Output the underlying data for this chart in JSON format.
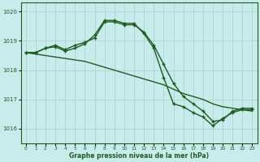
{
  "line1": {
    "x": [
      0,
      1,
      2,
      3,
      4,
      5,
      6,
      7,
      8,
      9,
      10,
      11,
      12,
      13,
      14,
      15,
      16,
      17,
      18,
      19,
      20,
      21,
      22,
      23
    ],
    "y": [
      1018.6,
      1018.6,
      1018.75,
      1018.85,
      1018.7,
      1018.85,
      1018.95,
      1019.1,
      1019.65,
      1019.65,
      1019.55,
      1019.55,
      1019.3,
      1018.85,
      1018.2,
      1017.55,
      1017.1,
      1016.85,
      1016.6,
      1016.25,
      1016.3,
      1016.6,
      1016.7,
      1016.7
    ]
  },
  "line2": {
    "x": [
      0,
      1,
      2,
      3,
      4,
      5,
      6,
      7,
      8,
      9,
      10,
      11,
      12,
      13,
      14,
      15,
      16,
      17,
      18,
      19,
      20,
      21,
      22,
      23
    ],
    "y": [
      1018.6,
      1018.55,
      1018.5,
      1018.45,
      1018.4,
      1018.35,
      1018.3,
      1018.2,
      1018.1,
      1018.0,
      1017.9,
      1017.8,
      1017.7,
      1017.6,
      1017.5,
      1017.35,
      1017.2,
      1017.1,
      1017.0,
      1016.85,
      1016.75,
      1016.7,
      1016.65,
      1016.6
    ]
  },
  "line3": {
    "x": [
      0,
      1,
      2,
      3,
      4,
      5,
      6,
      7,
      8,
      9,
      10,
      11,
      12,
      13,
      14,
      15,
      16,
      17,
      18,
      19,
      20,
      21,
      22,
      23
    ],
    "y": [
      1018.6,
      1018.6,
      1018.75,
      1018.8,
      1018.65,
      1018.75,
      1018.9,
      1019.2,
      1019.7,
      1019.7,
      1019.6,
      1019.6,
      1019.25,
      1018.75,
      1017.75,
      1016.85,
      1016.75,
      1016.55,
      1016.4,
      1016.1,
      1016.35,
      1016.55,
      1016.65,
      1016.65
    ]
  },
  "bg_color": "#c8ecec",
  "grid_color": "#b0d8d0",
  "line_color": "#1e5c1e",
  "xlabel": "Graphe pression niveau de la mer (hPa)",
  "ylim": [
    1015.5,
    1020.3
  ],
  "xlim": [
    -0.5,
    23.5
  ],
  "yticks": [
    1016,
    1017,
    1018,
    1019,
    1020
  ],
  "xticks": [
    0,
    1,
    2,
    3,
    4,
    5,
    6,
    7,
    8,
    9,
    10,
    11,
    12,
    13,
    14,
    15,
    16,
    17,
    18,
    19,
    20,
    21,
    22,
    23
  ]
}
